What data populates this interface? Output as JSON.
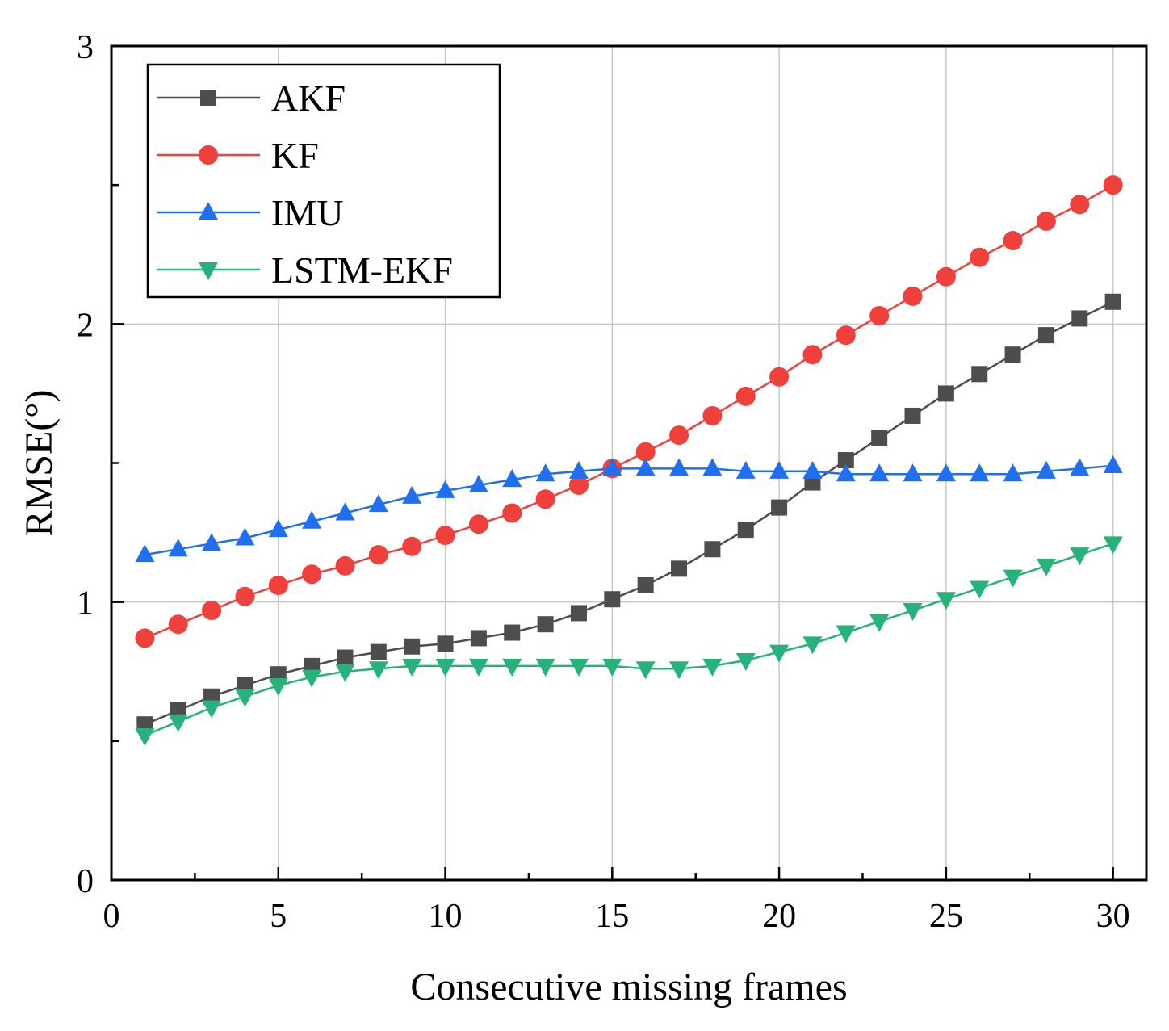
{
  "chart_data": {
    "type": "line",
    "title": "",
    "xlabel": "Consecutive missing frames",
    "ylabel": "RMSE(°)",
    "xlim": [
      0,
      31
    ],
    "ylim": [
      0,
      3
    ],
    "xticks": [
      0,
      5,
      10,
      15,
      20,
      25,
      30
    ],
    "yticks": [
      0,
      1,
      2,
      3
    ],
    "xtick_labels": [
      "0",
      "5",
      "10",
      "15",
      "20",
      "25",
      "30"
    ],
    "ytick_labels": [
      "0",
      "1",
      "2",
      "3"
    ],
    "grid": true,
    "legend_position": "top-left",
    "x": [
      1,
      2,
      3,
      4,
      5,
      6,
      7,
      8,
      9,
      10,
      11,
      12,
      13,
      14,
      15,
      16,
      17,
      18,
      19,
      20,
      21,
      22,
      23,
      24,
      25,
      26,
      27,
      28,
      29,
      30
    ],
    "series": [
      {
        "name": "AKF",
        "color": "#4d4d4d",
        "marker": "square",
        "values": [
          0.56,
          0.61,
          0.66,
          0.7,
          0.74,
          0.77,
          0.8,
          0.82,
          0.84,
          0.85,
          0.87,
          0.89,
          0.92,
          0.96,
          1.01,
          1.06,
          1.12,
          1.19,
          1.26,
          1.34,
          1.43,
          1.51,
          1.59,
          1.67,
          1.75,
          1.82,
          1.89,
          1.96,
          2.02,
          2.08
        ]
      },
      {
        "name": "KF",
        "color": "#f0403c",
        "marker": "circle",
        "values": [
          0.87,
          0.92,
          0.97,
          1.02,
          1.06,
          1.1,
          1.13,
          1.17,
          1.2,
          1.24,
          1.28,
          1.32,
          1.37,
          1.42,
          1.48,
          1.54,
          1.6,
          1.67,
          1.74,
          1.81,
          1.89,
          1.96,
          2.03,
          2.1,
          2.17,
          2.24,
          2.3,
          2.37,
          2.43,
          2.5
        ]
      },
      {
        "name": "IMU",
        "color": "#1f6ff0",
        "marker": "triangle-up",
        "values": [
          1.17,
          1.19,
          1.21,
          1.23,
          1.26,
          1.29,
          1.32,
          1.35,
          1.38,
          1.4,
          1.42,
          1.44,
          1.46,
          1.47,
          1.48,
          1.48,
          1.48,
          1.48,
          1.47,
          1.47,
          1.47,
          1.46,
          1.46,
          1.46,
          1.46,
          1.46,
          1.46,
          1.47,
          1.48,
          1.49
        ]
      },
      {
        "name": "LSTM-EKF",
        "color": "#26b27a",
        "marker": "triangle-down",
        "values": [
          0.52,
          0.57,
          0.62,
          0.66,
          0.7,
          0.73,
          0.75,
          0.76,
          0.77,
          0.77,
          0.77,
          0.77,
          0.77,
          0.77,
          0.77,
          0.76,
          0.76,
          0.77,
          0.79,
          0.82,
          0.85,
          0.89,
          0.93,
          0.97,
          1.01,
          1.05,
          1.09,
          1.13,
          1.17,
          1.21
        ]
      }
    ]
  }
}
